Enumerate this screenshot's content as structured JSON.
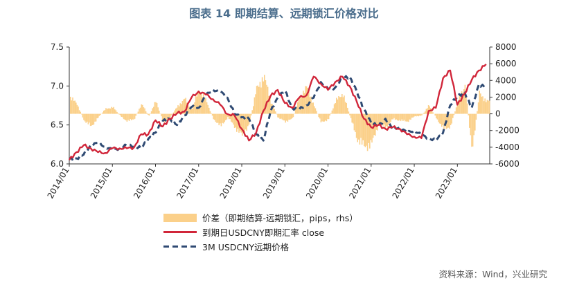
{
  "title": "图表 14 即期结算、远期锁汇价格对比",
  "source": "资料来源：Wind，兴业研究",
  "legend": {
    "spread": "价差（即期结算-远期锁汇，pips，rhs）",
    "spot": "到期日USDCNY即期汇率 close",
    "forward": "3M USDCNY远期价格"
  },
  "colors": {
    "spread": "#fbd08a",
    "spot": "#d1263a",
    "forward": "#2f4a73"
  },
  "chart_data": {
    "type": "line",
    "x_type": "date",
    "xlim": [
      "2014-01",
      "2023-10"
    ],
    "x_ticks": [
      "2014/01",
      "2015/01",
      "2016/01",
      "2017/01",
      "2018/01",
      "2019/01",
      "2020/01",
      "2021/01",
      "2022/01",
      "2023/01"
    ],
    "y_left": {
      "ylim": [
        6.0,
        7.5
      ],
      "ticks": [
        "6.0",
        "6.5",
        "7.0",
        "7.5"
      ]
    },
    "y_right": {
      "ylim": [
        -6000,
        8000
      ],
      "ticks": [
        "-6000",
        "-4000",
        "-2000",
        "0",
        "2000",
        "4000",
        "6000",
        "8000"
      ]
    },
    "series": [
      {
        "name": "价差（即期结算-远期锁汇，pips，rhs）",
        "type": "area",
        "axis": "right",
        "x": [
          "2014-01",
          "2014-03",
          "2014-05",
          "2014-07",
          "2014-09",
          "2014-11",
          "2015-01",
          "2015-03",
          "2015-05",
          "2015-07",
          "2015-09",
          "2015-11",
          "2016-01",
          "2016-03",
          "2016-05",
          "2016-07",
          "2016-09",
          "2016-11",
          "2017-01",
          "2017-03",
          "2017-05",
          "2017-07",
          "2017-09",
          "2017-11",
          "2018-01",
          "2018-03",
          "2018-05",
          "2018-07",
          "2018-09",
          "2018-11",
          "2019-01",
          "2019-03",
          "2019-05",
          "2019-07",
          "2019-09",
          "2019-11",
          "2020-01",
          "2020-03",
          "2020-05",
          "2020-07",
          "2020-09",
          "2020-11",
          "2021-01",
          "2021-03",
          "2021-05",
          "2021-07",
          "2021-09",
          "2021-11",
          "2022-01",
          "2022-03",
          "2022-05",
          "2022-07",
          "2022-09",
          "2022-11",
          "2023-01",
          "2023-03",
          "2023-05",
          "2023-07",
          "2023-09"
        ],
        "values": [
          2000,
          1200,
          -800,
          -1500,
          -400,
          600,
          800,
          -200,
          -900,
          -600,
          1200,
          -300,
          1500,
          -1000,
          -400,
          900,
          1800,
          500,
          3000,
          1500,
          -600,
          -1500,
          -400,
          -1600,
          -2600,
          -1200,
          3000,
          4500,
          1500,
          -500,
          -900,
          -600,
          2000,
          3200,
          1000,
          -1100,
          -600,
          1500,
          2500,
          -300,
          -3000,
          -3900,
          -3600,
          -1200,
          -1600,
          -600,
          -800,
          -900,
          -300,
          -200,
          1000,
          -500,
          -1800,
          -1500,
          1500,
          3500,
          -4600,
          2500,
          1500
        ]
      },
      {
        "name": "到期日USDCNY即期汇率 close",
        "type": "line",
        "axis": "left",
        "x": [
          "2014-01",
          "2014-03",
          "2014-05",
          "2014-07",
          "2014-09",
          "2014-11",
          "2015-01",
          "2015-03",
          "2015-05",
          "2015-07",
          "2015-09",
          "2015-11",
          "2016-01",
          "2016-03",
          "2016-05",
          "2016-07",
          "2016-09",
          "2016-11",
          "2017-01",
          "2017-03",
          "2017-05",
          "2017-07",
          "2017-09",
          "2017-11",
          "2018-01",
          "2018-03",
          "2018-05",
          "2018-07",
          "2018-09",
          "2018-11",
          "2019-01",
          "2019-03",
          "2019-05",
          "2019-07",
          "2019-09",
          "2019-11",
          "2020-01",
          "2020-03",
          "2020-05",
          "2020-07",
          "2020-09",
          "2020-11",
          "2021-01",
          "2021-03",
          "2021-05",
          "2021-07",
          "2021-09",
          "2021-11",
          "2022-01",
          "2022-03",
          "2022-05",
          "2022-07",
          "2022-09",
          "2022-11",
          "2023-01",
          "2023-03",
          "2023-05",
          "2023-07",
          "2023-09"
        ],
        "values": [
          6.05,
          6.15,
          6.24,
          6.2,
          6.15,
          6.14,
          6.2,
          6.2,
          6.2,
          6.21,
          6.38,
          6.38,
          6.56,
          6.48,
          6.58,
          6.65,
          6.67,
          6.85,
          6.93,
          6.89,
          6.83,
          6.76,
          6.64,
          6.62,
          6.45,
          6.3,
          6.4,
          6.68,
          6.87,
          6.95,
          6.78,
          6.72,
          6.85,
          6.88,
          7.12,
          7.03,
          6.95,
          7.05,
          7.12,
          7.0,
          6.8,
          6.58,
          6.47,
          6.5,
          6.45,
          6.47,
          6.45,
          6.38,
          6.35,
          6.33,
          6.68,
          6.72,
          7.1,
          7.2,
          6.76,
          6.9,
          7.08,
          7.2,
          7.28
        ]
      },
      {
        "name": "3M USDCNY远期价格",
        "type": "line",
        "axis": "left",
        "dashed": true,
        "x": [
          "2014-01",
          "2014-03",
          "2014-05",
          "2014-07",
          "2014-09",
          "2014-11",
          "2015-01",
          "2015-03",
          "2015-05",
          "2015-07",
          "2015-09",
          "2015-11",
          "2016-01",
          "2016-03",
          "2016-05",
          "2016-07",
          "2016-09",
          "2016-11",
          "2017-01",
          "2017-03",
          "2017-05",
          "2017-07",
          "2017-09",
          "2017-11",
          "2018-01",
          "2018-03",
          "2018-05",
          "2018-07",
          "2018-09",
          "2018-11",
          "2019-01",
          "2019-03",
          "2019-05",
          "2019-07",
          "2019-09",
          "2019-11",
          "2020-01",
          "2020-03",
          "2020-05",
          "2020-07",
          "2020-09",
          "2020-11",
          "2021-01",
          "2021-03",
          "2021-05",
          "2021-07",
          "2021-09",
          "2021-11",
          "2022-01",
          "2022-03",
          "2022-05",
          "2022-07",
          "2022-09",
          "2022-11",
          "2023-01",
          "2023-03",
          "2023-05",
          "2023-07",
          "2023-09"
        ],
        "values": [
          6.06,
          6.07,
          6.12,
          6.24,
          6.27,
          6.22,
          6.18,
          6.2,
          6.24,
          6.23,
          6.2,
          6.32,
          6.4,
          6.55,
          6.58,
          6.5,
          6.62,
          6.73,
          6.72,
          6.88,
          6.95,
          6.93,
          6.85,
          6.64,
          6.6,
          6.58,
          6.38,
          6.3,
          6.67,
          6.85,
          6.94,
          6.72,
          6.7,
          6.75,
          6.85,
          7.05,
          6.96,
          6.98,
          7.1,
          7.12,
          6.93,
          6.7,
          6.53,
          6.48,
          6.58,
          6.45,
          6.47,
          6.4,
          6.43,
          6.37,
          6.33,
          6.3,
          6.4,
          6.75,
          6.87,
          6.92,
          6.72,
          7.02,
          6.98
        ]
      }
    ]
  }
}
